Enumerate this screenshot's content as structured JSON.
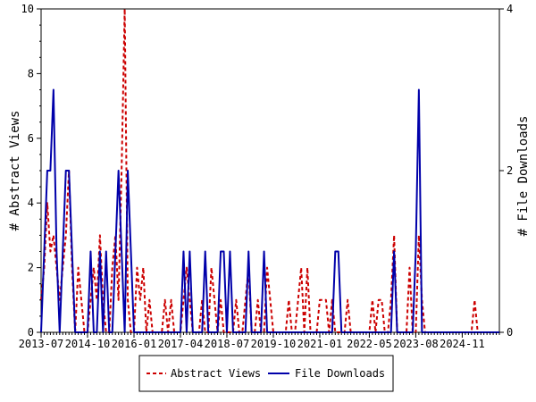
{
  "chart_data": {
    "type": "line",
    "title": "",
    "xlabel": "",
    "ylabel": "# Abstract Views",
    "y2label": "# File Downloads",
    "ylim": [
      0,
      10
    ],
    "y2lim": [
      0,
      4
    ],
    "yticks": [
      0,
      2,
      4,
      6,
      8,
      10
    ],
    "y2ticks": [
      0,
      2,
      4
    ],
    "x_tick_labels": [
      "2013-07",
      "2014-10",
      "2016-01",
      "2017-04",
      "2018-07",
      "2019-10",
      "2021-01",
      "2022-05",
      "2023-08",
      "2024-11"
    ],
    "xlim": [
      "2013-07",
      "2025-11"
    ],
    "grid": false,
    "legend_position": "bottom-center",
    "series": [
      {
        "name": "Abstract Views",
        "axis": "left",
        "color": "#cc0000",
        "style": "dashed",
        "points": [
          [
            "2013-07",
            1
          ],
          [
            "2013-08",
            2
          ],
          [
            "2013-09",
            4
          ],
          [
            "2013-10",
            2.5
          ],
          [
            "2013-11",
            3
          ],
          [
            "2013-12",
            2
          ],
          [
            "2014-01",
            1
          ],
          [
            "2014-02",
            2
          ],
          [
            "2014-03",
            3
          ],
          [
            "2014-04",
            5
          ],
          [
            "2014-05",
            2
          ],
          [
            "2014-06",
            0
          ],
          [
            "2014-07",
            2
          ],
          [
            "2014-08",
            1
          ],
          [
            "2014-09",
            0
          ],
          [
            "2014-10",
            0
          ],
          [
            "2014-11",
            1
          ],
          [
            "2014-12",
            2
          ],
          [
            "2015-01",
            1
          ],
          [
            "2015-02",
            3
          ],
          [
            "2015-03",
            1
          ],
          [
            "2015-04",
            0
          ],
          [
            "2015-05",
            0
          ],
          [
            "2015-06",
            2
          ],
          [
            "2015-07",
            3
          ],
          [
            "2015-08",
            1
          ],
          [
            "2015-09",
            5
          ],
          [
            "2015-10",
            10
          ],
          [
            "2015-11",
            1
          ],
          [
            "2015-12",
            0
          ],
          [
            "2016-01",
            0
          ],
          [
            "2016-02",
            2
          ],
          [
            "2016-03",
            1
          ],
          [
            "2016-04",
            2
          ],
          [
            "2016-05",
            0
          ],
          [
            "2016-06",
            1
          ],
          [
            "2016-07",
            0
          ],
          [
            "2016-08",
            0
          ],
          [
            "2016-09",
            0
          ],
          [
            "2016-10",
            0
          ],
          [
            "2016-11",
            1
          ],
          [
            "2016-12",
            0
          ],
          [
            "2017-01",
            1
          ],
          [
            "2017-02",
            0
          ],
          [
            "2017-03",
            0
          ],
          [
            "2017-04",
            0
          ],
          [
            "2017-05",
            1
          ],
          [
            "2017-06",
            2
          ],
          [
            "2017-07",
            1
          ],
          [
            "2017-08",
            0
          ],
          [
            "2017-09",
            0
          ],
          [
            "2017-10",
            0
          ],
          [
            "2017-11",
            1
          ],
          [
            "2017-12",
            0
          ],
          [
            "2018-01",
            0
          ],
          [
            "2018-02",
            2
          ],
          [
            "2018-03",
            1
          ],
          [
            "2018-04",
            0
          ],
          [
            "2018-05",
            1
          ],
          [
            "2018-06",
            0
          ],
          [
            "2018-07",
            0
          ],
          [
            "2018-08",
            0
          ],
          [
            "2018-09",
            0
          ],
          [
            "2018-10",
            1
          ],
          [
            "2018-11",
            0
          ],
          [
            "2018-12",
            0
          ],
          [
            "2019-01",
            1
          ],
          [
            "2019-02",
            2
          ],
          [
            "2019-03",
            0
          ],
          [
            "2019-04",
            0
          ],
          [
            "2019-05",
            1
          ],
          [
            "2019-06",
            0
          ],
          [
            "2019-07",
            0
          ],
          [
            "2019-08",
            2
          ],
          [
            "2019-09",
            1
          ],
          [
            "2019-10",
            0
          ],
          [
            "2019-11",
            0
          ],
          [
            "2019-12",
            0
          ],
          [
            "2020-01",
            0
          ],
          [
            "2020-02",
            0
          ],
          [
            "2020-03",
            1
          ],
          [
            "2020-04",
            0
          ],
          [
            "2020-05",
            0
          ],
          [
            "2020-06",
            1
          ],
          [
            "2020-07",
            2
          ],
          [
            "2020-08",
            0
          ],
          [
            "2020-09",
            2
          ],
          [
            "2020-10",
            0
          ],
          [
            "2020-11",
            0
          ],
          [
            "2020-12",
            0
          ],
          [
            "2021-01",
            1
          ],
          [
            "2021-02",
            1
          ],
          [
            "2021-03",
            1
          ],
          [
            "2021-04",
            0
          ],
          [
            "2021-05",
            1
          ],
          [
            "2021-06",
            0
          ],
          [
            "2021-07",
            0
          ],
          [
            "2021-08",
            0
          ],
          [
            "2021-09",
            0
          ],
          [
            "2021-10",
            1
          ],
          [
            "2021-11",
            0
          ],
          [
            "2021-12",
            0
          ],
          [
            "2022-01",
            0
          ],
          [
            "2022-02",
            0
          ],
          [
            "2022-03",
            0
          ],
          [
            "2022-04",
            0
          ],
          [
            "2022-05",
            0
          ],
          [
            "2022-06",
            1
          ],
          [
            "2022-07",
            0
          ],
          [
            "2022-08",
            1
          ],
          [
            "2022-09",
            1
          ],
          [
            "2022-10",
            0
          ],
          [
            "2022-11",
            0
          ],
          [
            "2022-12",
            1
          ],
          [
            "2023-01",
            3
          ],
          [
            "2023-02",
            0
          ],
          [
            "2023-03",
            0
          ],
          [
            "2023-04",
            0
          ],
          [
            "2023-05",
            0
          ],
          [
            "2023-06",
            2
          ],
          [
            "2023-07",
            0
          ],
          [
            "2023-08",
            0
          ],
          [
            "2023-09",
            3
          ],
          [
            "2023-10",
            1
          ],
          [
            "2023-11",
            0
          ],
          [
            "2023-12",
            0
          ],
          [
            "2024-01",
            0
          ],
          [
            "2024-02",
            0
          ],
          [
            "2024-03",
            0
          ],
          [
            "2024-04",
            0
          ],
          [
            "2024-05",
            0
          ],
          [
            "2024-06",
            0
          ],
          [
            "2024-07",
            0
          ],
          [
            "2024-08",
            0
          ],
          [
            "2024-09",
            0
          ],
          [
            "2024-10",
            0
          ],
          [
            "2024-11",
            0
          ],
          [
            "2024-12",
            0
          ],
          [
            "2025-01",
            0
          ],
          [
            "2025-02",
            0
          ],
          [
            "2025-03",
            1
          ],
          [
            "2025-04",
            0
          ],
          [
            "2025-05",
            0
          ],
          [
            "2025-06",
            0
          ],
          [
            "2025-07",
            0
          ],
          [
            "2025-08",
            0
          ],
          [
            "2025-09",
            0
          ],
          [
            "2025-10",
            0
          ],
          [
            "2025-11",
            0
          ]
        ]
      },
      {
        "name": "File Downloads",
        "axis": "right",
        "color": "#0000aa",
        "style": "solid",
        "points": [
          [
            "2013-07",
            0
          ],
          [
            "2013-08",
            1
          ],
          [
            "2013-09",
            2
          ],
          [
            "2013-10",
            2
          ],
          [
            "2013-11",
            3
          ],
          [
            "2013-12",
            1
          ],
          [
            "2014-01",
            0
          ],
          [
            "2014-02",
            1
          ],
          [
            "2014-03",
            2
          ],
          [
            "2014-04",
            2
          ],
          [
            "2014-05",
            1
          ],
          [
            "2014-06",
            0
          ],
          [
            "2014-07",
            0
          ],
          [
            "2014-08",
            0
          ],
          [
            "2014-09",
            0
          ],
          [
            "2014-10",
            0
          ],
          [
            "2014-11",
            1
          ],
          [
            "2014-12",
            0
          ],
          [
            "2015-01",
            0
          ],
          [
            "2015-02",
            1
          ],
          [
            "2015-03",
            0
          ],
          [
            "2015-04",
            1
          ],
          [
            "2015-05",
            0
          ],
          [
            "2015-06",
            0
          ],
          [
            "2015-07",
            1
          ],
          [
            "2015-08",
            2
          ],
          [
            "2015-09",
            1
          ],
          [
            "2015-10",
            0
          ],
          [
            "2015-11",
            2
          ],
          [
            "2015-12",
            1
          ],
          [
            "2016-01",
            0
          ],
          [
            "2016-02",
            0
          ],
          [
            "2016-03",
            0
          ],
          [
            "2016-04",
            0
          ],
          [
            "2016-05",
            0
          ],
          [
            "2016-06",
            0
          ],
          [
            "2016-07",
            0
          ],
          [
            "2016-08",
            0
          ],
          [
            "2016-09",
            0
          ],
          [
            "2016-10",
            0
          ],
          [
            "2016-11",
            0
          ],
          [
            "2016-12",
            0
          ],
          [
            "2017-01",
            0
          ],
          [
            "2017-02",
            0
          ],
          [
            "2017-03",
            0
          ],
          [
            "2017-04",
            0
          ],
          [
            "2017-05",
            1
          ],
          [
            "2017-06",
            0
          ],
          [
            "2017-07",
            1
          ],
          [
            "2017-08",
            0
          ],
          [
            "2017-09",
            0
          ],
          [
            "2017-10",
            0
          ],
          [
            "2017-11",
            0
          ],
          [
            "2017-12",
            1
          ],
          [
            "2018-01",
            0
          ],
          [
            "2018-02",
            0
          ],
          [
            "2018-03",
            0
          ],
          [
            "2018-04",
            0
          ],
          [
            "2018-05",
            1
          ],
          [
            "2018-06",
            1
          ],
          [
            "2018-07",
            0
          ],
          [
            "2018-08",
            1
          ],
          [
            "2018-09",
            0
          ],
          [
            "2018-10",
            0
          ],
          [
            "2018-11",
            0
          ],
          [
            "2018-12",
            0
          ],
          [
            "2019-01",
            0
          ],
          [
            "2019-02",
            1
          ],
          [
            "2019-03",
            0
          ],
          [
            "2019-04",
            0
          ],
          [
            "2019-05",
            0
          ],
          [
            "2019-06",
            0
          ],
          [
            "2019-07",
            1
          ],
          [
            "2019-08",
            0
          ],
          [
            "2019-09",
            0
          ],
          [
            "2019-10",
            0
          ],
          [
            "2019-11",
            0
          ],
          [
            "2019-12",
            0
          ],
          [
            "2020-01",
            0
          ],
          [
            "2020-02",
            0
          ],
          [
            "2020-03",
            0
          ],
          [
            "2020-04",
            0
          ],
          [
            "2020-05",
            0
          ],
          [
            "2020-06",
            0
          ],
          [
            "2020-07",
            0
          ],
          [
            "2020-08",
            0
          ],
          [
            "2020-09",
            0
          ],
          [
            "2020-10",
            0
          ],
          [
            "2020-11",
            0
          ],
          [
            "2020-12",
            0
          ],
          [
            "2021-01",
            0
          ],
          [
            "2021-02",
            0
          ],
          [
            "2021-03",
            0
          ],
          [
            "2021-04",
            0
          ],
          [
            "2021-05",
            0
          ],
          [
            "2021-06",
            1
          ],
          [
            "2021-07",
            1
          ],
          [
            "2021-08",
            0
          ],
          [
            "2021-09",
            0
          ],
          [
            "2021-10",
            0
          ],
          [
            "2021-11",
            0
          ],
          [
            "2021-12",
            0
          ],
          [
            "2022-01",
            0
          ],
          [
            "2022-02",
            0
          ],
          [
            "2022-03",
            0
          ],
          [
            "2022-04",
            0
          ],
          [
            "2022-05",
            0
          ],
          [
            "2022-06",
            0
          ],
          [
            "2022-07",
            0
          ],
          [
            "2022-08",
            0
          ],
          [
            "2022-09",
            0
          ],
          [
            "2022-10",
            0
          ],
          [
            "2022-11",
            0
          ],
          [
            "2022-12",
            0
          ],
          [
            "2023-01",
            1
          ],
          [
            "2023-02",
            0
          ],
          [
            "2023-03",
            0
          ],
          [
            "2023-04",
            0
          ],
          [
            "2023-05",
            0
          ],
          [
            "2023-06",
            0
          ],
          [
            "2023-07",
            0
          ],
          [
            "2023-08",
            1
          ],
          [
            "2023-09",
            3
          ],
          [
            "2023-10",
            0
          ],
          [
            "2023-11",
            0
          ],
          [
            "2023-12",
            0
          ],
          [
            "2024-01",
            0
          ],
          [
            "2024-02",
            0
          ],
          [
            "2024-03",
            0
          ],
          [
            "2024-04",
            0
          ],
          [
            "2024-05",
            0
          ],
          [
            "2024-06",
            0
          ],
          [
            "2024-07",
            0
          ],
          [
            "2024-08",
            0
          ],
          [
            "2024-09",
            0
          ],
          [
            "2024-10",
            0
          ],
          [
            "2024-11",
            0
          ],
          [
            "2024-12",
            0
          ],
          [
            "2025-01",
            0
          ],
          [
            "2025-02",
            0
          ],
          [
            "2025-03",
            0
          ],
          [
            "2025-04",
            0
          ],
          [
            "2025-05",
            0
          ],
          [
            "2025-06",
            0
          ],
          [
            "2025-07",
            0
          ],
          [
            "2025-08",
            0
          ],
          [
            "2025-09",
            0
          ],
          [
            "2025-10",
            0
          ],
          [
            "2025-11",
            0
          ]
        ]
      }
    ]
  }
}
